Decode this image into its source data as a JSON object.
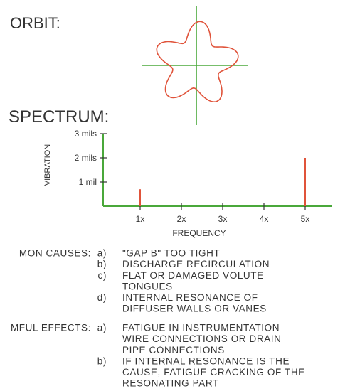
{
  "orbit": {
    "title": "ORBIT:"
  },
  "chart_data": {
    "type": "bar",
    "title": "SPECTRUM:",
    "ylabel": "VIBRATION",
    "xlabel": "FREQUENCY",
    "categories": [
      "1x",
      "2x",
      "3x",
      "4x",
      "5x"
    ],
    "values": [
      0.7,
      0,
      0,
      0,
      2
    ],
    "color": "#e0533a",
    "axis_color": "#4aa83a",
    "ylim": [
      0,
      3
    ],
    "yticks": [
      {
        "value": 1,
        "label": "1 mil"
      },
      {
        "value": 2,
        "label": "2 mils"
      },
      {
        "value": 3,
        "label": "3 mils"
      }
    ]
  },
  "causes": {
    "label": "MON CAUSES:",
    "items": [
      {
        "letter": "a)",
        "lines": [
          "\"GAP B\" TOO TIGHT"
        ]
      },
      {
        "letter": "b)",
        "lines": [
          "DISCHARGE RECIRCULATION"
        ]
      },
      {
        "letter": "c)",
        "lines": [
          "FLAT OR DAMAGED VOLUTE",
          "TONGUES"
        ]
      },
      {
        "letter": "d)",
        "lines": [
          "INTERNAL RESONANCE OF",
          "DIFFUSER WALLS OR VANES"
        ]
      }
    ]
  },
  "effects": {
    "label": "MFUL EFFECTS:",
    "items": [
      {
        "letter": "a)",
        "lines": [
          "FATIGUE IN INSTRUMENTATION",
          "WIRE CONNECTIONS OR DRAIN",
          "PIPE CONNECTIONS"
        ]
      },
      {
        "letter": "b)",
        "lines": [
          "IF INTERNAL RESONANCE IS THE",
          "CAUSE, FATIGUE CRACKING OF THE",
          "RESONATING PART"
        ]
      }
    ]
  }
}
